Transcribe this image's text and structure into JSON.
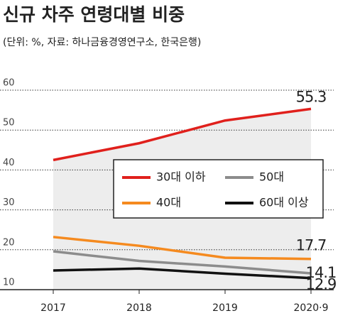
{
  "chart_data": {
    "type": "line",
    "title": "신규 차주 연령대별 비중",
    "subtitle": "(단위:  %, 자료: 하나금융경영연구소, 한국은행)",
    "categories": [
      "2017",
      "2018",
      "2019",
      "2020·9"
    ],
    "series": [
      {
        "name": "30대 이하",
        "color": "#e0201c",
        "values": [
          42.5,
          46.7,
          52.4,
          55.3
        ]
      },
      {
        "name": "40대",
        "color": "#f58a1f",
        "values": [
          23.2,
          21.0,
          18.0,
          17.7
        ]
      },
      {
        "name": "50대",
        "color": "#8c8c8c",
        "values": [
          19.6,
          17.2,
          15.8,
          14.1
        ]
      },
      {
        "name": "60대 이상",
        "color": "#111111",
        "values": [
          14.8,
          15.3,
          14.0,
          12.9
        ]
      }
    ],
    "ylim": [
      10,
      60
    ],
    "yticks": [
      10,
      20,
      30,
      40,
      50,
      60
    ],
    "grid": true
  }
}
